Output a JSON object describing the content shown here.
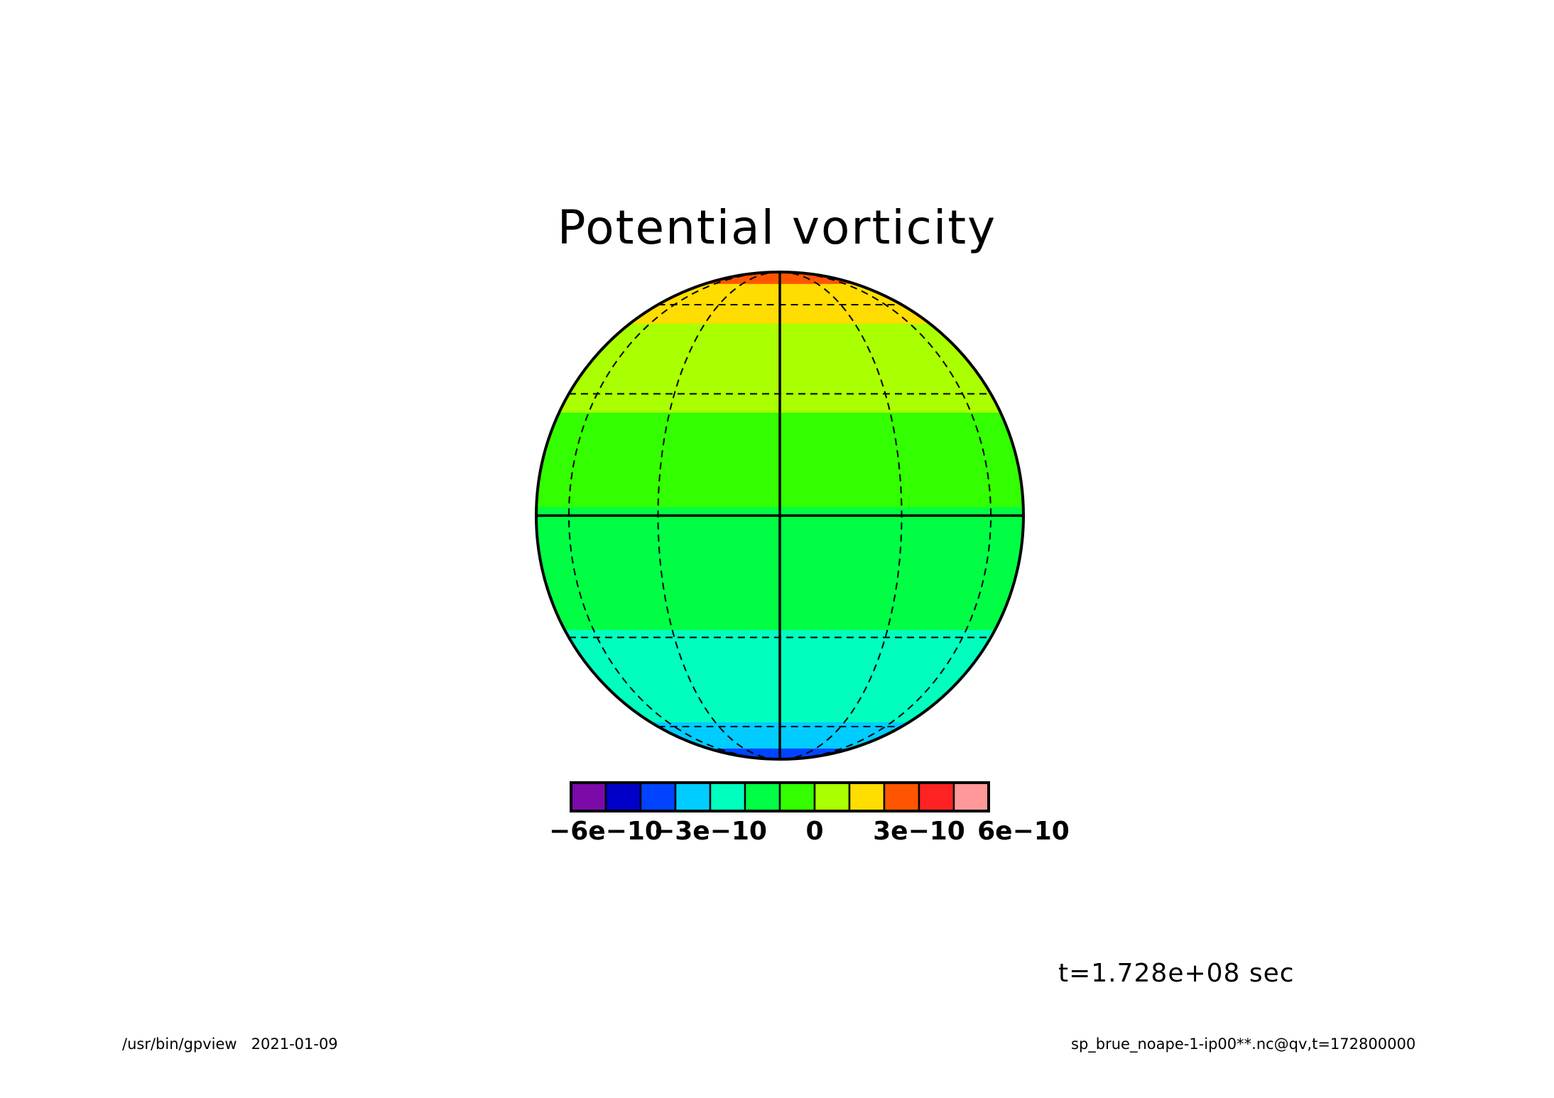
{
  "chart_data": {
    "type": "heatmap",
    "title": "Potential vorticity",
    "projection": "orthographic",
    "levels": [
      -7e-10,
      -6e-10,
      -5e-10,
      -4e-10,
      -3e-10,
      -2e-10,
      -1e-10,
      0,
      1e-10,
      2e-10,
      3e-10,
      4e-10,
      5e-10,
      6e-10,
      7e-10
    ],
    "colorbar": {
      "colors": [
        "#7b0aa9",
        "#0000c8",
        "#0044ff",
        "#00ccff",
        "#00ffbf",
        "#00ff44",
        "#33ff00",
        "#aaff00",
        "#ffdd00",
        "#ff5500",
        "#ff2222",
        "#ff9999"
      ],
      "tick_labels": [
        "-6e-10",
        "-3e-10",
        "0",
        "3e-10",
        "6e-10"
      ]
    },
    "latitude_bands": [
      {
        "lat_min": 72,
        "lat_max": 90,
        "color": "#ff5500"
      },
      {
        "lat_min": 52,
        "lat_max": 72,
        "color": "#ffdd00"
      },
      {
        "lat_min": 25,
        "lat_max": 52,
        "color": "#aaff00"
      },
      {
        "lat_min": 2,
        "lat_max": 25,
        "color": "#33ff00"
      },
      {
        "lat_min": -28,
        "lat_max": 2,
        "color": "#00ff44"
      },
      {
        "lat_min": -58,
        "lat_max": -28,
        "color": "#00ffbf"
      },
      {
        "lat_min": -73,
        "lat_max": -58,
        "color": "#00ccff"
      },
      {
        "lat_min": -88,
        "lat_max": -73,
        "color": "#0044ff"
      },
      {
        "lat_min": -90,
        "lat_max": -88,
        "color": "#0000c8"
      }
    ],
    "graticule": {
      "meridians": [
        -90,
        -60,
        -30,
        0,
        30,
        60,
        90
      ],
      "parallels": [
        -60,
        -30,
        0,
        30,
        60
      ]
    },
    "time_label": "t=1.728e+08 sec"
  },
  "footer": {
    "left": "/usr/bin/gpview   2021-01-09",
    "right": "sp_brue_noape-1-ip00**.nc@qv,t=172800000"
  }
}
